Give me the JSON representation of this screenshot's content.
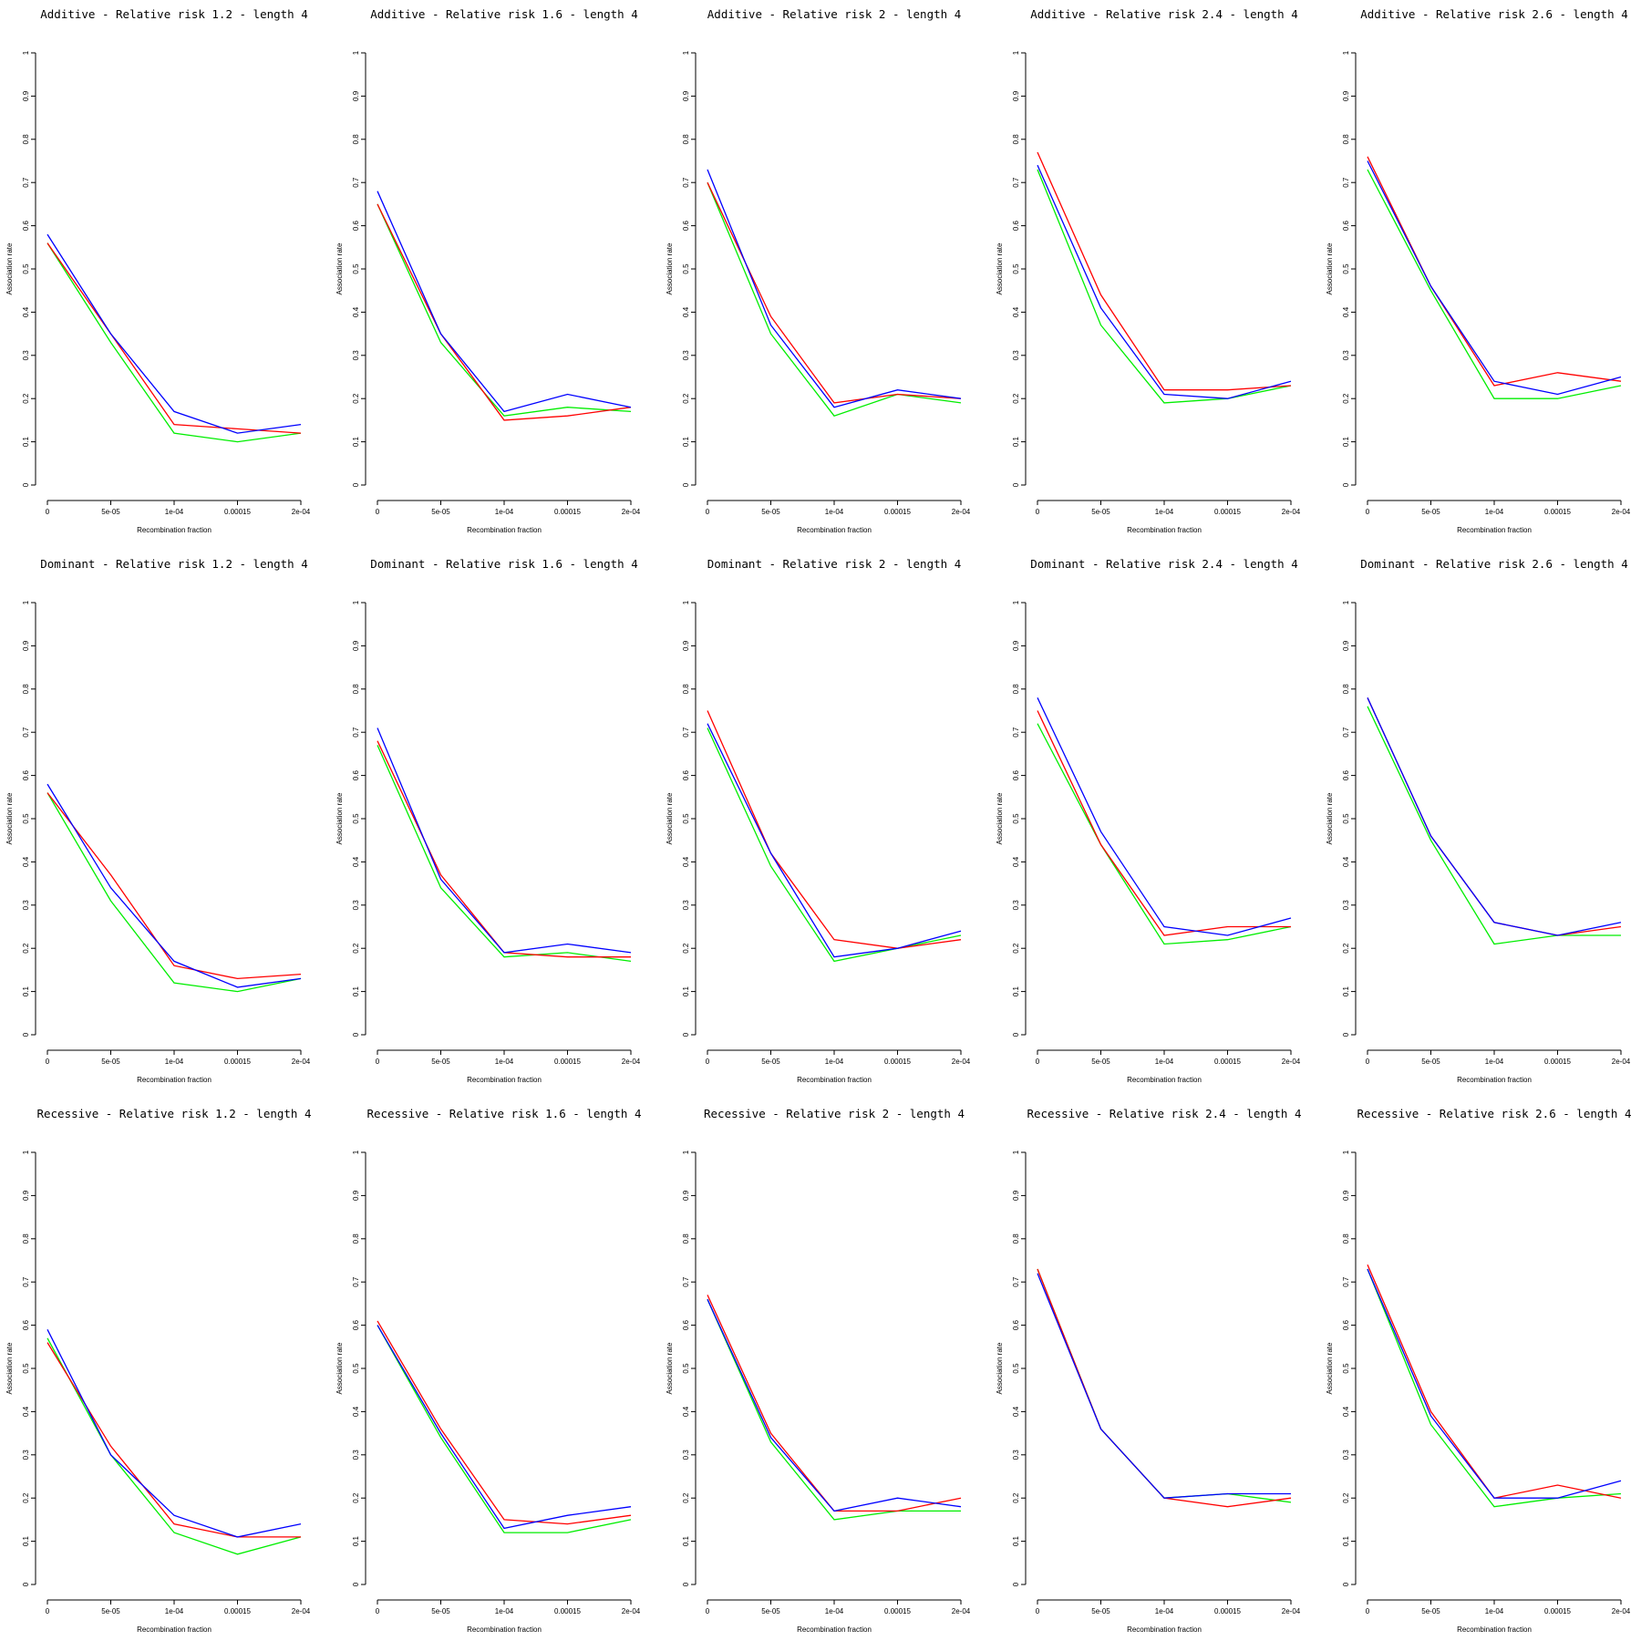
{
  "chart_data": {
    "type": "line",
    "layout": "3x5 grid of small multiples",
    "x": [
      "0",
      "5e-05",
      "1e-04",
      "0.00015",
      "2e-04"
    ],
    "y_ticks": [
      "0",
      "0.1",
      "0.2",
      "0.3",
      "0.4",
      "0.5",
      "0.6",
      "0.7",
      "0.8",
      "0.9",
      "1"
    ],
    "xlabel": "Recombination fraction",
    "ylabel": "Association rate",
    "ylim": [
      0,
      1
    ],
    "grid": false,
    "legend": "none",
    "series_colors": {
      "red": "#ff0000",
      "green": "#00ee00",
      "blue": "#0000ff"
    },
    "panels": [
      {
        "title": "Additive  - Relative risk 1.2 - length 4",
        "red": [
          0.56,
          0.35,
          0.14,
          0.13,
          0.12
        ],
        "green": [
          0.56,
          0.33,
          0.12,
          0.1,
          0.12
        ],
        "blue": [
          0.58,
          0.35,
          0.17,
          0.12,
          0.14
        ]
      },
      {
        "title": "Additive  - Relative risk 1.6 - length 4",
        "red": [
          0.65,
          0.35,
          0.15,
          0.16,
          0.18
        ],
        "green": [
          0.65,
          0.33,
          0.16,
          0.18,
          0.17
        ],
        "blue": [
          0.68,
          0.35,
          0.17,
          0.21,
          0.18
        ]
      },
      {
        "title": "Additive  - Relative risk 2 - length 4",
        "red": [
          0.7,
          0.39,
          0.19,
          0.21,
          0.2
        ],
        "green": [
          0.7,
          0.35,
          0.16,
          0.21,
          0.19
        ],
        "blue": [
          0.73,
          0.37,
          0.18,
          0.22,
          0.2
        ]
      },
      {
        "title": "Additive  - Relative risk 2.4 - length 4",
        "red": [
          0.77,
          0.44,
          0.22,
          0.22,
          0.23
        ],
        "green": [
          0.73,
          0.37,
          0.19,
          0.2,
          0.23
        ],
        "blue": [
          0.74,
          0.41,
          0.21,
          0.2,
          0.24
        ]
      },
      {
        "title": "Additive  - Relative risk 2.6 - length 4",
        "red": [
          0.76,
          0.46,
          0.23,
          0.26,
          0.24
        ],
        "green": [
          0.73,
          0.45,
          0.2,
          0.2,
          0.23
        ],
        "blue": [
          0.75,
          0.46,
          0.24,
          0.21,
          0.25
        ]
      },
      {
        "title": "Dominant  - Relative risk 1.2 - length 4",
        "red": [
          0.56,
          0.37,
          0.16,
          0.13,
          0.14
        ],
        "green": [
          0.56,
          0.31,
          0.12,
          0.1,
          0.13
        ],
        "blue": [
          0.58,
          0.34,
          0.17,
          0.11,
          0.13
        ]
      },
      {
        "title": "Dominant  - Relative risk 1.6 - length 4",
        "red": [
          0.68,
          0.37,
          0.19,
          0.18,
          0.18
        ],
        "green": [
          0.67,
          0.34,
          0.18,
          0.19,
          0.17
        ],
        "blue": [
          0.71,
          0.36,
          0.19,
          0.21,
          0.19
        ]
      },
      {
        "title": "Dominant  - Relative risk 2 - length 4",
        "red": [
          0.75,
          0.42,
          0.22,
          0.2,
          0.22
        ],
        "green": [
          0.71,
          0.39,
          0.17,
          0.2,
          0.23
        ],
        "blue": [
          0.72,
          0.42,
          0.18,
          0.2,
          0.24
        ]
      },
      {
        "title": "Dominant  - Relative risk 2.4 - length 4",
        "red": [
          0.75,
          0.44,
          0.23,
          0.25,
          0.25
        ],
        "green": [
          0.72,
          0.44,
          0.21,
          0.22,
          0.25
        ],
        "blue": [
          0.78,
          0.47,
          0.25,
          0.23,
          0.27
        ]
      },
      {
        "title": "Dominant  - Relative risk 2.6 - length 4",
        "red": [
          0.78,
          0.46,
          0.26,
          0.23,
          0.25
        ],
        "green": [
          0.76,
          0.45,
          0.21,
          0.23,
          0.23
        ],
        "blue": [
          0.78,
          0.46,
          0.26,
          0.23,
          0.26
        ]
      },
      {
        "title": "Recessive  - Relative risk 1.2 - length 4",
        "red": [
          0.56,
          0.32,
          0.14,
          0.11,
          0.11
        ],
        "green": [
          0.57,
          0.3,
          0.12,
          0.07,
          0.11
        ],
        "blue": [
          0.59,
          0.3,
          0.16,
          0.11,
          0.14
        ]
      },
      {
        "title": "Recessive  - Relative risk 1.6 - length 4",
        "red": [
          0.61,
          0.36,
          0.15,
          0.14,
          0.16
        ],
        "green": [
          0.6,
          0.34,
          0.12,
          0.12,
          0.15
        ],
        "blue": [
          0.6,
          0.35,
          0.13,
          0.16,
          0.18
        ]
      },
      {
        "title": "Recessive  - Relative risk 2 - length 4",
        "red": [
          0.67,
          0.35,
          0.17,
          0.17,
          0.2
        ],
        "green": [
          0.66,
          0.33,
          0.15,
          0.17,
          0.17
        ],
        "blue": [
          0.66,
          0.34,
          0.17,
          0.2,
          0.18
        ]
      },
      {
        "title": "Recessive  - Relative risk 2.4 - length 4",
        "red": [
          0.73,
          0.36,
          0.2,
          0.18,
          0.2
        ],
        "green": [
          0.73,
          0.36,
          0.2,
          0.21,
          0.19
        ],
        "blue": [
          0.72,
          0.36,
          0.2,
          0.21,
          0.21
        ]
      },
      {
        "title": "Recessive  - Relative risk 2.6 - length 4",
        "red": [
          0.74,
          0.4,
          0.2,
          0.23,
          0.2
        ],
        "green": [
          0.73,
          0.37,
          0.18,
          0.2,
          0.21
        ],
        "blue": [
          0.73,
          0.39,
          0.2,
          0.2,
          0.24
        ]
      }
    ]
  }
}
